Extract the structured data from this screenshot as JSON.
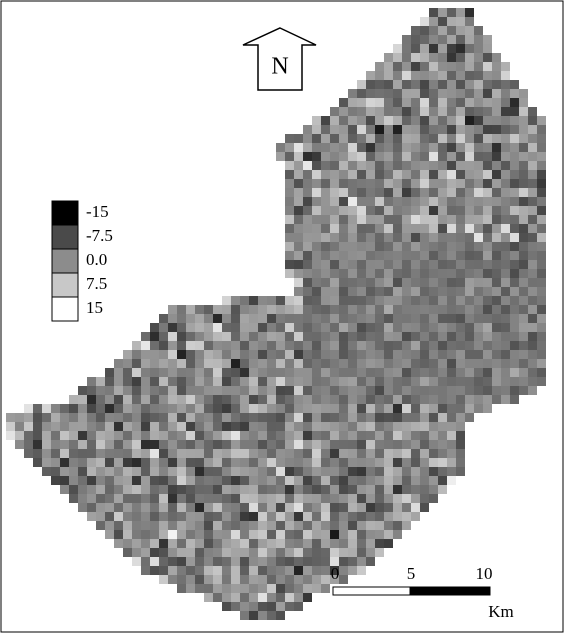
{
  "legend": {
    "items": [
      {
        "label": "-15",
        "color": "#000000"
      },
      {
        "label": "-7.5",
        "color": "#4a4a4a"
      },
      {
        "label": "0.0",
        "color": "#8c8c8c"
      },
      {
        "label": "7.5",
        "color": "#c8c8c8"
      },
      {
        "label": "15",
        "color": "#ffffff"
      }
    ]
  },
  "north_label": "N",
  "scale_bar": {
    "labels": [
      "0",
      "5",
      "10"
    ],
    "unit": "Km"
  }
}
